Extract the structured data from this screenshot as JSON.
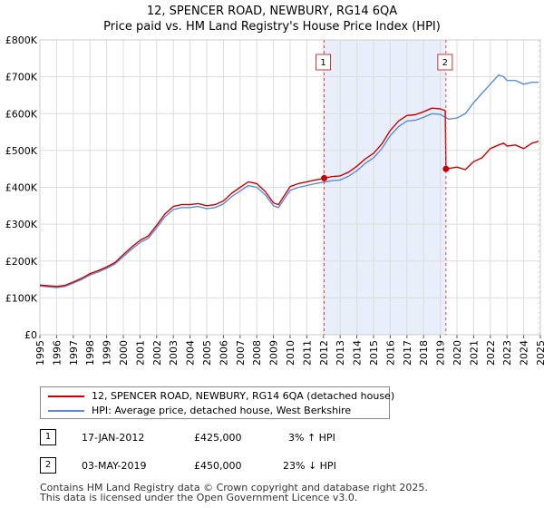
{
  "header": {
    "title_line1": "12, SPENCER ROAD, NEWBURY, RG14 6QA",
    "title_line2": "Price paid vs. HM Land Registry's House Price Index (HPI)"
  },
  "chart_data": {
    "type": "line",
    "x_range": [
      1995,
      2025
    ],
    "ylim": [
      0,
      800000
    ],
    "y_ticks": [
      {
        "value": 0,
        "label": "£0"
      },
      {
        "value": 100000,
        "label": "£100K"
      },
      {
        "value": 200000,
        "label": "£200K"
      },
      {
        "value": 300000,
        "label": "£300K"
      },
      {
        "value": 400000,
        "label": "£400K"
      },
      {
        "value": 500000,
        "label": "£500K"
      },
      {
        "value": 600000,
        "label": "£600K"
      },
      {
        "value": 700000,
        "label": "£700K"
      },
      {
        "value": 800000,
        "label": "£800K"
      }
    ],
    "x_ticks": [
      "1995",
      "1996",
      "1997",
      "1998",
      "1999",
      "2000",
      "2001",
      "2002",
      "2003",
      "2004",
      "2005",
      "2006",
      "2007",
      "2008",
      "2009",
      "2010",
      "2011",
      "2012",
      "2013",
      "2014",
      "2015",
      "2016",
      "2017",
      "2018",
      "2019",
      "2020",
      "2021",
      "2022",
      "2023",
      "2024",
      "2025"
    ],
    "grid": true,
    "shaded_period": {
      "start": 2012.04,
      "end": 2019.34
    },
    "hatched_future": {
      "start": 2024.85,
      "end": 2025.0
    },
    "series": [
      {
        "name": "HPI: Average price, detached house, West Berkshire",
        "color": "#5b8ed6",
        "points": [
          [
            1995.0,
            132000
          ],
          [
            1995.5,
            130000
          ],
          [
            1996.0,
            128000
          ],
          [
            1996.5,
            131000
          ],
          [
            1997.0,
            140000
          ],
          [
            1997.5,
            150000
          ],
          [
            1998.0,
            162000
          ],
          [
            1998.5,
            170000
          ],
          [
            1999.0,
            180000
          ],
          [
            1999.5,
            192000
          ],
          [
            2000.0,
            212000
          ],
          [
            2000.5,
            232000
          ],
          [
            2001.0,
            250000
          ],
          [
            2001.5,
            262000
          ],
          [
            2002.0,
            290000
          ],
          [
            2002.5,
            320000
          ],
          [
            2003.0,
            340000
          ],
          [
            2003.5,
            345000
          ],
          [
            2004.0,
            345000
          ],
          [
            2004.5,
            348000
          ],
          [
            2005.0,
            342000
          ],
          [
            2005.5,
            345000
          ],
          [
            2006.0,
            355000
          ],
          [
            2006.5,
            375000
          ],
          [
            2007.0,
            390000
          ],
          [
            2007.5,
            405000
          ],
          [
            2008.0,
            400000
          ],
          [
            2008.5,
            380000
          ],
          [
            2009.0,
            350000
          ],
          [
            2009.3,
            345000
          ],
          [
            2009.7,
            372000
          ],
          [
            2010.0,
            392000
          ],
          [
            2010.5,
            400000
          ],
          [
            2011.0,
            405000
          ],
          [
            2011.5,
            410000
          ],
          [
            2012.0,
            414000
          ],
          [
            2012.5,
            418000
          ],
          [
            2013.0,
            420000
          ],
          [
            2013.5,
            430000
          ],
          [
            2014.0,
            445000
          ],
          [
            2014.5,
            465000
          ],
          [
            2015.0,
            480000
          ],
          [
            2015.5,
            505000
          ],
          [
            2016.0,
            540000
          ],
          [
            2016.5,
            565000
          ],
          [
            2017.0,
            580000
          ],
          [
            2017.5,
            582000
          ],
          [
            2018.0,
            590000
          ],
          [
            2018.5,
            600000
          ],
          [
            2019.0,
            598000
          ],
          [
            2019.3,
            590000
          ],
          [
            2019.5,
            585000
          ],
          [
            2020.0,
            588000
          ],
          [
            2020.5,
            600000
          ],
          [
            2021.0,
            630000
          ],
          [
            2021.5,
            655000
          ],
          [
            2022.0,
            680000
          ],
          [
            2022.5,
            705000
          ],
          [
            2022.8,
            700000
          ],
          [
            2023.0,
            690000
          ],
          [
            2023.5,
            690000
          ],
          [
            2024.0,
            680000
          ],
          [
            2024.5,
            685000
          ],
          [
            2024.9,
            685000
          ]
        ]
      },
      {
        "name": "12, SPENCER ROAD, NEWBURY, RG14 6QA (detached house)",
        "color": "#cc0000",
        "points": [
          [
            1995.0,
            135000
          ],
          [
            1995.5,
            133000
          ],
          [
            1996.0,
            131000
          ],
          [
            1996.5,
            134000
          ],
          [
            1997.0,
            143000
          ],
          [
            1997.5,
            153000
          ],
          [
            1998.0,
            166000
          ],
          [
            1998.5,
            174000
          ],
          [
            1999.0,
            184000
          ],
          [
            1999.5,
            196000
          ],
          [
            2000.0,
            217000
          ],
          [
            2000.5,
            238000
          ],
          [
            2001.0,
            256000
          ],
          [
            2001.5,
            268000
          ],
          [
            2002.0,
            297000
          ],
          [
            2002.5,
            328000
          ],
          [
            2003.0,
            348000
          ],
          [
            2003.5,
            353000
          ],
          [
            2004.0,
            353000
          ],
          [
            2004.5,
            356000
          ],
          [
            2005.0,
            350000
          ],
          [
            2005.5,
            353000
          ],
          [
            2006.0,
            363000
          ],
          [
            2006.5,
            384000
          ],
          [
            2007.0,
            400000
          ],
          [
            2007.5,
            415000
          ],
          [
            2008.0,
            410000
          ],
          [
            2008.5,
            389000
          ],
          [
            2009.0,
            358000
          ],
          [
            2009.3,
            353000
          ],
          [
            2009.7,
            381000
          ],
          [
            2010.0,
            402000
          ],
          [
            2010.5,
            410000
          ],
          [
            2011.0,
            415000
          ],
          [
            2011.5,
            420000
          ],
          [
            2012.0,
            424000
          ],
          [
            2012.04,
            425000
          ],
          [
            2012.5,
            429000
          ],
          [
            2013.0,
            431000
          ],
          [
            2013.5,
            441000
          ],
          [
            2014.0,
            457000
          ],
          [
            2014.5,
            477000
          ],
          [
            2015.0,
            492000
          ],
          [
            2015.5,
            518000
          ],
          [
            2016.0,
            554000
          ],
          [
            2016.5,
            580000
          ],
          [
            2017.0,
            595000
          ],
          [
            2017.5,
            597000
          ],
          [
            2018.0,
            605000
          ],
          [
            2018.5,
            615000
          ],
          [
            2019.0,
            613000
          ],
          [
            2019.3,
            608000
          ],
          [
            2019.34,
            450000
          ],
          [
            2019.6,
            452000
          ],
          [
            2020.0,
            455000
          ],
          [
            2020.5,
            448000
          ],
          [
            2021.0,
            470000
          ],
          [
            2021.5,
            480000
          ],
          [
            2022.0,
            505000
          ],
          [
            2022.5,
            515000
          ],
          [
            2022.8,
            520000
          ],
          [
            2023.0,
            512000
          ],
          [
            2023.5,
            515000
          ],
          [
            2024.0,
            505000
          ],
          [
            2024.5,
            520000
          ],
          [
            2024.9,
            525000
          ]
        ]
      }
    ],
    "markers": [
      {
        "label": "1",
        "x": 2012.04,
        "value": 425000
      },
      {
        "label": "2",
        "x": 2019.34,
        "value": 450000
      }
    ]
  },
  "legend": {
    "items": [
      {
        "label": "12, SPENCER ROAD, NEWBURY, RG14 6QA (detached house)",
        "color": "#cc0000"
      },
      {
        "label": "HPI: Average price, detached house, West Berkshire",
        "color": "#5b8ed6"
      }
    ]
  },
  "transactions": [
    {
      "num": "1",
      "date": "17-JAN-2012",
      "price": "£425,000",
      "hpi": "3% ↑ HPI"
    },
    {
      "num": "2",
      "date": "03-MAY-2019",
      "price": "£450,000",
      "hpi": "23% ↓ HPI"
    }
  ],
  "footer": {
    "line1": "Contains HM Land Registry data © Crown copyright and database right 2025.",
    "line2": "This data is licensed under the Open Government Licence v3.0."
  }
}
